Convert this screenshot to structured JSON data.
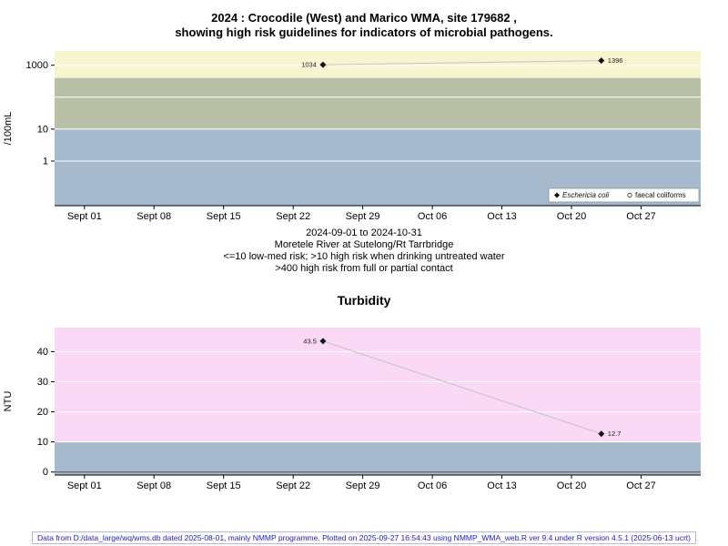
{
  "title": {
    "line1": "2024 : Crocodile (West) and Marico WMA, site 179682 ,",
    "line2": "showing high risk guidelines for indicators of microbial pathogens."
  },
  "footer": {
    "text": "Data from D:/data_large/wq/wms.db dated 2025-08-01, mainly NMMP programme. Plotted on 2025-09-27 16:54:43 using NMMP_WMA_web.R ver 9.4 under R version 4.5.1 (2025-06-13 ucrt)"
  },
  "chart_data": [
    {
      "type": "scatter",
      "title": "",
      "ylabel": "/100mL",
      "yscale": "log",
      "ylim": [
        0.04,
        2800
      ],
      "yticks": [
        {
          "value": 1000,
          "label": "1000"
        },
        {
          "value": 10,
          "label": "10"
        },
        {
          "value": 1,
          "label": "1"
        }
      ],
      "ygrid": [
        {
          "value": 1,
          "color": "#ffffff"
        },
        {
          "value": 10,
          "color": "#ffffff"
        },
        {
          "value": 100,
          "color": "#ffffff"
        },
        {
          "value": 1000,
          "color": "#ffffff"
        }
      ],
      "x_ticks": [
        "Sept 01",
        "Sept 08",
        "Sept 15",
        "Sept 22",
        "Sept 29",
        "Oct 06",
        "Oct 13",
        "Oct 20",
        "Oct 27"
      ],
      "x_tick_days": [
        3,
        10,
        17,
        24,
        31,
        38,
        45,
        52,
        59
      ],
      "x_domain_days": 65,
      "bands": [
        {
          "from": 400,
          "to": 2800,
          "color": "#f6f5cf"
        },
        {
          "from": 10,
          "to": 400,
          "color": "#b9c0a8"
        },
        {
          "from": 0.04,
          "to": 10,
          "color": "#a7bacd"
        }
      ],
      "series": [
        {
          "name": "Eschericia coli",
          "marker": "diamond",
          "points": [
            {
              "day": 27,
              "value": 1034,
              "label": "1034",
              "label_side": "left"
            },
            {
              "day": 55,
              "value": 1396,
              "label": "1396",
              "label_side": "right"
            }
          ]
        },
        {
          "name": "faecal coliforms",
          "marker": "circle",
          "points": []
        }
      ],
      "legend": {
        "position": "bottom-right",
        "items": [
          {
            "label": "Eschericia coli",
            "marker": "diamond",
            "italic": true
          },
          {
            "label": "faecal coliforms",
            "marker": "circle",
            "italic": false
          }
        ]
      },
      "caption": [
        "2024-09-01 to 2024-10-31",
        "Moretele River at Sutelong/Rt Tarrbridge",
        "<=10 low-med risk; >10 high risk when drinking untreated water",
        ">400 high risk from full or partial contact"
      ]
    },
    {
      "type": "scatter",
      "title": "Turbidity",
      "ylabel": "NTU",
      "yscale": "linear",
      "ylim": [
        -1,
        48
      ],
      "yticks": [
        {
          "value": 0,
          "label": "0"
        },
        {
          "value": 10,
          "label": "10"
        },
        {
          "value": 20,
          "label": "20"
        },
        {
          "value": 30,
          "label": "30"
        },
        {
          "value": 40,
          "label": "40"
        }
      ],
      "ygrid": [
        {
          "value": 0,
          "color": "#555555"
        },
        {
          "value": 10,
          "color": "#ffffff"
        },
        {
          "value": 20,
          "color": "#ffffff"
        },
        {
          "value": 30,
          "color": "#ffffff"
        },
        {
          "value": 40,
          "color": "#ffffff"
        }
      ],
      "x_ticks": [
        "Sept 01",
        "Sept 08",
        "Sept 15",
        "Sept 22",
        "Sept 29",
        "Oct 06",
        "Oct 13",
        "Oct 20",
        "Oct 27"
      ],
      "x_tick_days": [
        3,
        10,
        17,
        24,
        31,
        38,
        45,
        52,
        59
      ],
      "x_domain_days": 65,
      "bands": [
        {
          "from": 10,
          "to": 48,
          "color": "#f9d9f5"
        },
        {
          "from": -1,
          "to": 10,
          "color": "#a7bacd"
        }
      ],
      "series": [
        {
          "name": "Turbidity",
          "marker": "diamond",
          "points": [
            {
              "day": 27,
              "value": 43.5,
              "label": "43.5",
              "label_side": "left"
            },
            {
              "day": 55,
              "value": 12.7,
              "label": "12.7",
              "label_side": "right"
            }
          ]
        }
      ]
    }
  ]
}
